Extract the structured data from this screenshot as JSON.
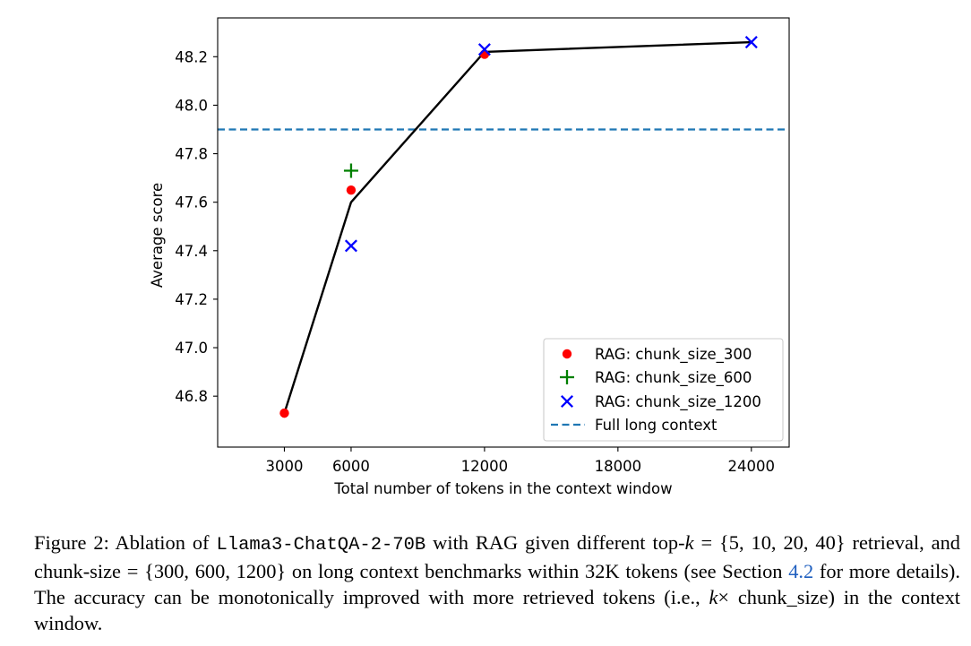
{
  "chart_data": {
    "type": "line",
    "xlabel": "Total number of tokens in the context window",
    "ylabel": "Average score",
    "xlim": [
      0,
      25700
    ],
    "ylim": [
      46.59,
      48.36
    ],
    "xticks": [
      3000,
      6000,
      12000,
      18000,
      24000
    ],
    "yticks": [
      46.8,
      47.0,
      47.2,
      47.4,
      47.6,
      47.8,
      48.0,
      48.2
    ],
    "grid": false,
    "legend_position": "lower-right",
    "line": {
      "x": [
        3000,
        6000,
        12000,
        24000
      ],
      "y": [
        46.73,
        47.6,
        48.22,
        48.26
      ],
      "color": "#000000"
    },
    "series": [
      {
        "name": "RAG: chunk_size_300",
        "marker": "circle",
        "color": "#ff0000",
        "x": [
          3000,
          6000,
          12000
        ],
        "y": [
          46.73,
          47.65,
          48.21
        ]
      },
      {
        "name": "RAG: chunk_size_600",
        "marker": "plus",
        "color": "#008000",
        "x": [
          6000
        ],
        "y": [
          47.73
        ]
      },
      {
        "name": "RAG: chunk_size_1200",
        "marker": "x",
        "color": "#0000ff",
        "x": [
          6000,
          12000,
          24000
        ],
        "y": [
          47.42,
          48.23,
          48.26
        ]
      }
    ],
    "reference_lines": [
      {
        "name": "Full long context",
        "orientation": "horizontal",
        "y": 47.9,
        "style": "dashed",
        "color": "#1f77b4"
      }
    ]
  },
  "caption": {
    "lead": "Figure 2:  Ablation of ",
    "model": "Llama3-ChatQA-2-70B",
    "part1": " with RAG given different top-",
    "k": "k",
    "part2": " = {5, 10, 20, 40} retrieval, and chunk-size = {300, 600, 1200} on long context benchmarks within 32K tokens (see Section ",
    "section_ref": "4.2",
    "part3": " for more details).  The accuracy can be monotonically improved with more retrieved tokens (i.e., ",
    "k2": "k",
    "part4": "× chunk_size) in the context window."
  }
}
